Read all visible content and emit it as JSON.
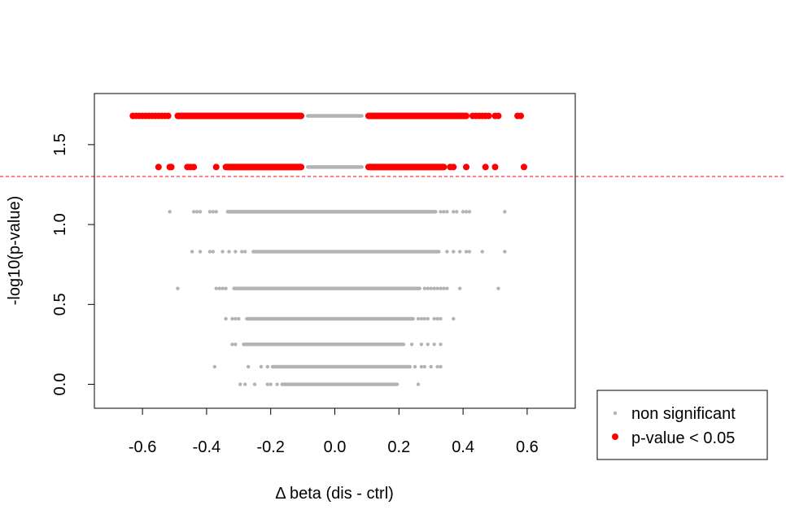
{
  "chart_data": {
    "type": "scatter",
    "title": "",
    "xlabel": "Δ beta (dis - ctrl)",
    "ylabel": "-log10(p-value)",
    "xlim": [
      -0.75,
      0.75
    ],
    "ylim": [
      -0.15,
      1.82
    ],
    "xticks": [
      {
        "value": -0.6,
        "label": "-0.6"
      },
      {
        "value": -0.4,
        "label": "-0.4"
      },
      {
        "value": -0.2,
        "label": "-0.2"
      },
      {
        "value": 0.0,
        "label": "0.0"
      },
      {
        "value": 0.2,
        "label": "0.2"
      },
      {
        "value": 0.4,
        "label": "0.4"
      },
      {
        "value": 0.6,
        "label": "0.6"
      }
    ],
    "yticks": [
      {
        "value": 0.0,
        "label": "0.0"
      },
      {
        "value": 0.5,
        "label": "0.5"
      },
      {
        "value": 1.0,
        "label": "1.0"
      },
      {
        "value": 1.5,
        "label": "1.5"
      }
    ],
    "threshold": {
      "y": 1.301,
      "color": "#ff0000",
      "style": "dashed"
    },
    "grid": false,
    "legend": {
      "position": "bottom-right-outside"
    },
    "series": [
      {
        "name": "non significant",
        "color": "#b3b3b3",
        "marker": "small-dot",
        "bands": [
          {
            "y": 1.68,
            "segments": [
              [
                -0.09,
                0.09
              ]
            ],
            "points": []
          },
          {
            "y": 1.36,
            "segments": [
              [
                -0.09,
                0.09
              ]
            ],
            "points": []
          },
          {
            "y": 1.08,
            "segments": [
              [
                -0.34,
                0.32
              ]
            ],
            "points": [
              -0.515,
              -0.44,
              -0.43,
              -0.42,
              -0.39,
              -0.38,
              -0.37,
              0.33,
              0.34,
              0.35,
              0.37,
              0.38,
              0.4,
              0.41,
              0.42,
              0.53
            ]
          },
          {
            "y": 0.83,
            "segments": [
              [
                -0.26,
                0.33
              ]
            ],
            "points": [
              -0.445,
              -0.42,
              -0.39,
              -0.38,
              -0.35,
              -0.33,
              -0.31,
              -0.29,
              -0.28,
              0.35,
              0.37,
              0.39,
              0.41,
              0.42,
              0.46,
              0.53
            ]
          },
          {
            "y": 0.6,
            "segments": [
              [
                -0.32,
                0.27
              ]
            ],
            "points": [
              -0.49,
              -0.37,
              -0.36,
              -0.35,
              -0.34,
              0.28,
              0.29,
              0.3,
              0.31,
              0.32,
              0.33,
              0.34,
              0.35,
              0.39,
              0.51
            ]
          },
          {
            "y": 0.41,
            "segments": [
              [
                -0.28,
                0.25
              ]
            ],
            "points": [
              -0.34,
              -0.32,
              -0.31,
              -0.3,
              0.26,
              0.27,
              0.28,
              0.29,
              0.31,
              0.32,
              0.33,
              0.37
            ]
          },
          {
            "y": 0.25,
            "segments": [
              [
                -0.29,
                0.22
              ]
            ],
            "points": [
              -0.32,
              -0.31,
              0.24,
              0.27,
              0.29,
              0.31,
              0.33
            ]
          },
          {
            "y": 0.11,
            "segments": [
              [
                -0.2,
                0.24
              ]
            ],
            "points": [
              -0.375,
              -0.27,
              -0.23,
              -0.21,
              0.25,
              0.27,
              0.28,
              0.3,
              0.32,
              0.33
            ]
          },
          {
            "y": 0.0,
            "segments": [
              [
                -0.17,
                0.2
              ]
            ],
            "points": [
              -0.295,
              -0.28,
              -0.25,
              -0.21,
              -0.2,
              -0.18,
              0.26
            ]
          }
        ]
      },
      {
        "name": "p-value < 0.05",
        "color": "#ff0000",
        "marker": "filled-circle",
        "bands": [
          {
            "y": 1.68,
            "segments": [
              [
                -0.5,
                -0.095
              ],
              [
                0.095,
                0.42
              ]
            ],
            "points": [
              -0.63,
              -0.62,
              -0.61,
              -0.6,
              -0.59,
              -0.58,
              -0.57,
              -0.56,
              -0.55,
              -0.54,
              -0.53,
              -0.52,
              0.43,
              0.44,
              0.45,
              0.46,
              0.47,
              0.48,
              0.5,
              0.51,
              0.57,
              0.58
            ]
          },
          {
            "y": 1.36,
            "segments": [
              [
                -0.35,
                -0.095
              ],
              [
                0.095,
                0.35
              ]
            ],
            "points": [
              -0.55,
              -0.515,
              -0.51,
              -0.46,
              -0.45,
              -0.44,
              -0.37,
              0.36,
              0.37,
              0.41,
              0.47,
              0.5,
              0.59
            ]
          }
        ]
      }
    ]
  }
}
